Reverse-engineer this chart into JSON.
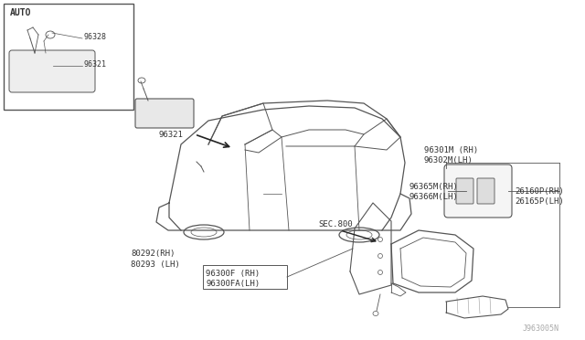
{
  "bg_color": "#ffffff",
  "line_color": "#888888",
  "text_color": "#333333",
  "dark_line": "#555555",
  "watermark": "J963005N",
  "labels": {
    "auto_box": "AUTO",
    "part_96328": "96328",
    "part_96321_inset": "96321",
    "part_96321_main": "96321",
    "part_sec800": "SEC.800",
    "part_80292": "80292(RH)",
    "part_80293": "80293 (LH)",
    "part_96300f": "96300F (RH)",
    "part_96300fa": "96300FA(LH)",
    "part_96301m": "96301M (RH)",
    "part_96302m": "96302M(LH)",
    "part_96365m": "96365M(RH)",
    "part_96366m": "96366M(LH)",
    "part_26160p": "26160P(RH)",
    "part_26165p": "26165P(LH)"
  },
  "figsize": [
    6.4,
    3.72
  ],
  "dpi": 100
}
